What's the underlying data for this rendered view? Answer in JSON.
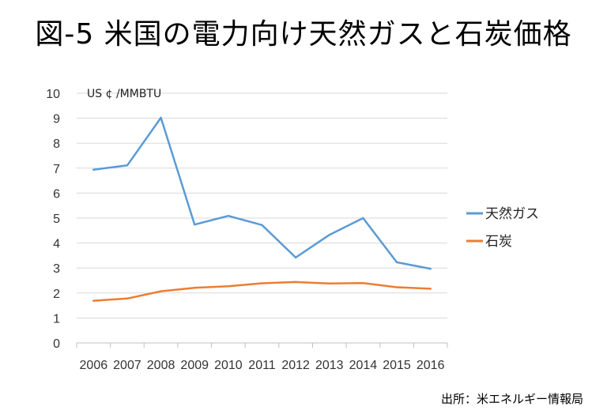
{
  "title": "図-5 米国の電力向け天然ガスと石炭価格",
  "source": "出所：米エネルギー情報局",
  "chart_data": {
    "type": "line",
    "title": "図-5 米国の電力向け天然ガスと石炭価格",
    "ylabel": "US ¢ /MMBTU",
    "xlabel": "",
    "categories": [
      "2006",
      "2007",
      "2008",
      "2009",
      "2010",
      "2011",
      "2012",
      "2013",
      "2014",
      "2015",
      "2016"
    ],
    "ylim": [
      0,
      10
    ],
    "yticks": [
      0,
      1,
      2,
      3,
      4,
      5,
      6,
      7,
      8,
      9,
      10
    ],
    "grid": true,
    "legend_position": "right",
    "series": [
      {
        "name": "天然ガス",
        "color": "#5b9bd5",
        "values": [
          6.94,
          7.11,
          9.02,
          4.74,
          5.09,
          4.72,
          3.42,
          4.33,
          5.0,
          3.23,
          2.97
        ]
      },
      {
        "name": "石炭",
        "color": "#ed7d31",
        "values": [
          1.69,
          1.78,
          2.07,
          2.21,
          2.27,
          2.39,
          2.44,
          2.38,
          2.4,
          2.23,
          2.17
        ]
      }
    ]
  }
}
